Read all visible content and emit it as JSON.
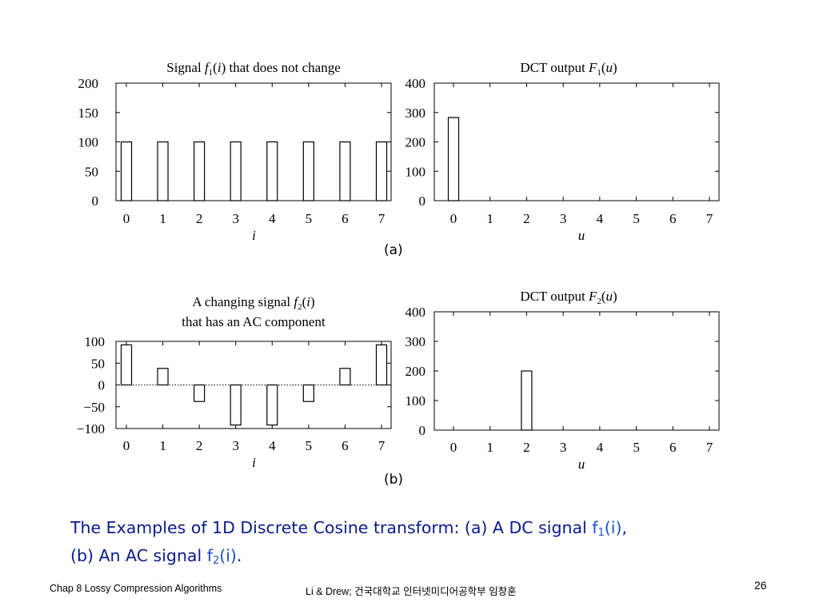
{
  "chart_data": [
    {
      "type": "bar",
      "id": "a1",
      "title": "Signal f1(i) that does not change",
      "title_parts": {
        "pre": "Signal ",
        "fn": "f",
        "sub": "1",
        "arg": "(i)",
        "post": " that does not change"
      },
      "xlabel": "i",
      "categories": [
        "0",
        "1",
        "2",
        "3",
        "4",
        "5",
        "6",
        "7"
      ],
      "values": [
        100,
        100,
        100,
        100,
        100,
        100,
        100,
        100
      ],
      "ylim": [
        0,
        200
      ],
      "yticks": [
        "0",
        "50",
        "100",
        "150",
        "200"
      ]
    },
    {
      "type": "bar",
      "id": "a2",
      "title": "DCT output F1(u)",
      "title_parts": {
        "pre": "DCT output ",
        "fn": "F",
        "sub": "1",
        "arg": "(u)",
        "post": ""
      },
      "xlabel": "u",
      "categories": [
        "0",
        "1",
        "2",
        "3",
        "4",
        "5",
        "6",
        "7"
      ],
      "values": [
        283,
        0,
        0,
        0,
        0,
        0,
        0,
        0
      ],
      "ylim": [
        0,
        400
      ],
      "yticks": [
        "0",
        "100",
        "200",
        "300",
        "400"
      ]
    },
    {
      "type": "bar",
      "id": "b1",
      "title": "A changing signal f2(i) that has an AC component",
      "title_parts": {
        "pre": "A changing signal ",
        "fn": "f",
        "sub": "2",
        "arg": "(i)",
        "line2": "that has an AC component"
      },
      "xlabel": "i",
      "categories": [
        "0",
        "1",
        "2",
        "3",
        "4",
        "5",
        "6",
        "7"
      ],
      "values": [
        92,
        38,
        -38,
        -92,
        -92,
        -38,
        38,
        92
      ],
      "ylim": [
        -100,
        100
      ],
      "yticks": [
        "−100",
        "−50",
        "0",
        "50",
        "100"
      ],
      "zero_line": "dotted"
    },
    {
      "type": "bar",
      "id": "b2",
      "title": "DCT output F2(u)",
      "title_parts": {
        "pre": "DCT output ",
        "fn": "F",
        "sub": "2",
        "arg": "(u)",
        "post": ""
      },
      "xlabel": "u",
      "categories": [
        "0",
        "1",
        "2",
        "3",
        "4",
        "5",
        "6",
        "7"
      ],
      "values": [
        0,
        0,
        200,
        0,
        0,
        0,
        0,
        0
      ],
      "ylim": [
        0,
        400
      ],
      "yticks": [
        "0",
        "100",
        "200",
        "300",
        "400"
      ]
    }
  ],
  "panel_labels": {
    "a": "(a)",
    "b": "(b)"
  },
  "caption": {
    "part1": "The Examples of 1D Discrete Cosine transform: (a) A DC signal ",
    "f1_base": "f",
    "f1_sub": "1",
    "f1_arg": "(i)",
    "part2": ",",
    "part3": "(b) An AC signal ",
    "f2_base": "f",
    "f2_sub": "2",
    "f2_arg": "(i)",
    "part4": "."
  },
  "footer": {
    "chapter": "Chap 8  Lossy Compression Algorithms",
    "authors": "Li & Drew; 건국대학교 인터넷미디어공학부 임창훈",
    "page": "26"
  },
  "colors": {
    "caption": "#0a1a8c",
    "caption_highlight": "#1a4fd0"
  }
}
